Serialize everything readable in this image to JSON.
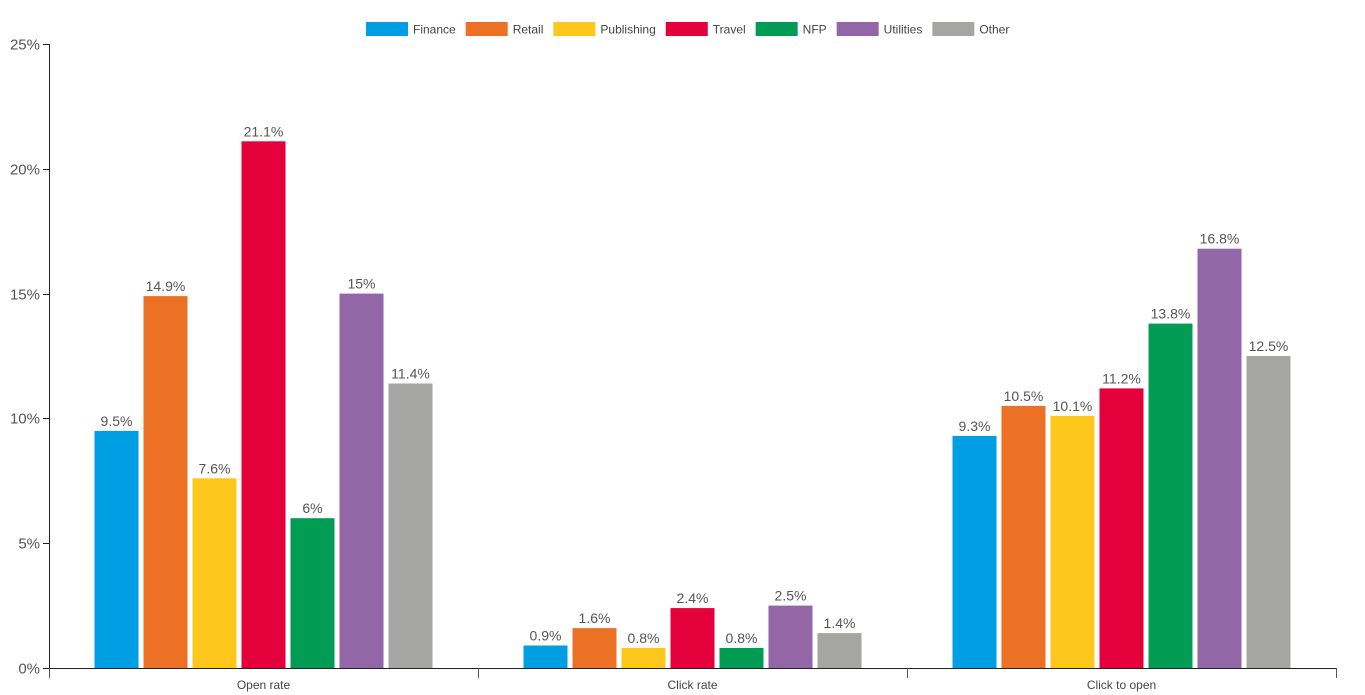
{
  "chart_data": {
    "type": "bar",
    "categories": [
      "Open rate",
      "Click rate",
      "Click to open"
    ],
    "series": [
      {
        "name": "Finance",
        "color": "#009fe3",
        "values": [
          9.5,
          0.9,
          9.3
        ],
        "labels": [
          "9.5%",
          "0.9%",
          "9.3%"
        ]
      },
      {
        "name": "Retail",
        "color": "#ec7125",
        "values": [
          14.9,
          1.6,
          10.5
        ],
        "labels": [
          "14.9%",
          "1.6%",
          "10.5%"
        ]
      },
      {
        "name": "Publishing",
        "color": "#fdc81b",
        "values": [
          7.6,
          0.8,
          10.1
        ],
        "labels": [
          "7.6%",
          "0.8%",
          "10.1%"
        ]
      },
      {
        "name": "Travel",
        "color": "#e4003a",
        "values": [
          21.1,
          2.4,
          11.2
        ],
        "labels": [
          "21.1%",
          "2.4%",
          "11.2%"
        ]
      },
      {
        "name": "NFP",
        "color": "#009c54",
        "values": [
          6,
          0.8,
          13.8
        ],
        "labels": [
          "6%",
          "0.8%",
          "13.8%"
        ]
      },
      {
        "name": "Utilities",
        "color": "#9366a8",
        "values": [
          15,
          2.5,
          16.8
        ],
        "labels": [
          "15%",
          "2.5%",
          "16.8%"
        ]
      },
      {
        "name": "Other",
        "color": "#a5a5a4",
        "values": [
          11.4,
          1.4,
          12.5
        ],
        "labels": [
          "11.4%",
          "1.4%",
          "12.5%"
        ]
      }
    ],
    "yticks": [
      {
        "value": 0,
        "label": "0%"
      },
      {
        "value": 5,
        "label": "5%"
      },
      {
        "value": 10,
        "label": "10%"
      },
      {
        "value": 15,
        "label": "15%"
      },
      {
        "value": 20,
        "label": "20%"
      },
      {
        "value": 25,
        "label": "25%"
      }
    ],
    "ylim": [
      0,
      25
    ],
    "title": "",
    "xlabel": "",
    "ylabel": "",
    "grid": false,
    "legend_position": "top"
  }
}
